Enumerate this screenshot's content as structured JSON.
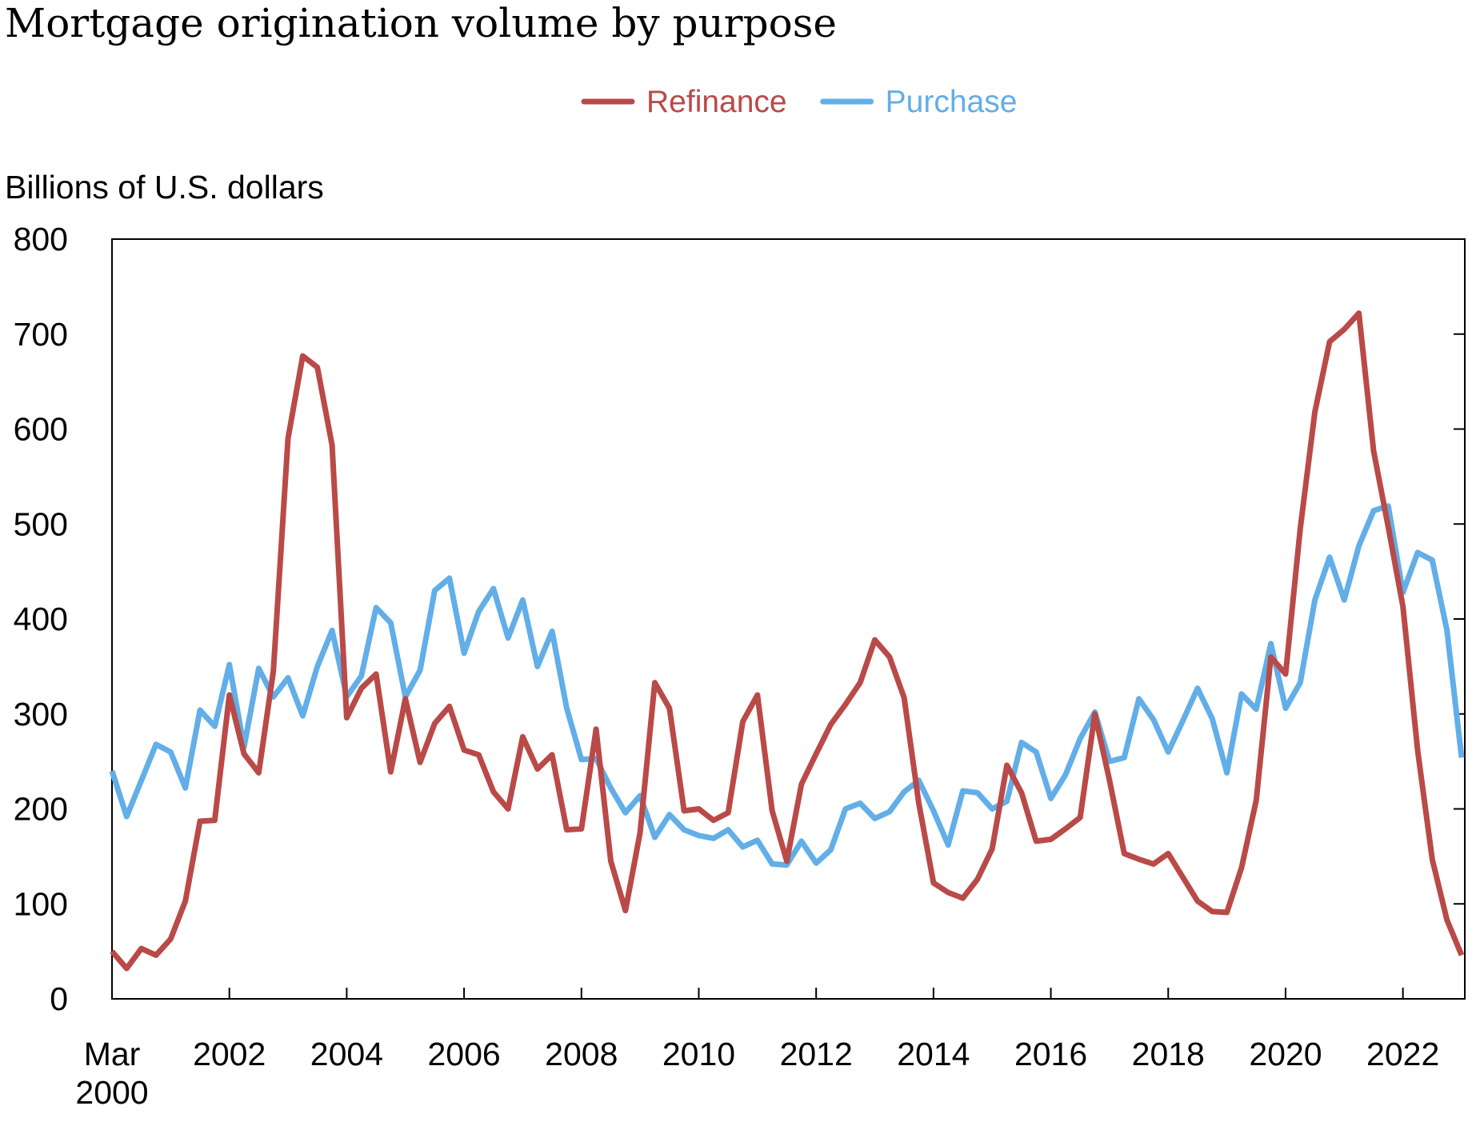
{
  "chart_data": {
    "type": "line",
    "title": "Mortgage origination volume by purpose",
    "ylabel": "Billions of U.S. dollars",
    "xlabel": "",
    "ylim": [
      0,
      800
    ],
    "yticks": [
      0,
      100,
      200,
      300,
      400,
      500,
      600,
      700,
      800
    ],
    "xtick_labels": [
      "Mar\n2000",
      "2002",
      "2004",
      "2006",
      "2008",
      "2010",
      "2012",
      "2014",
      "2016",
      "2018",
      "2020",
      "2022"
    ],
    "legend": "top-center",
    "grid": false,
    "x": [
      "2000Q1",
      "2000Q2",
      "2000Q3",
      "2000Q4",
      "2001Q1",
      "2001Q2",
      "2001Q3",
      "2001Q4",
      "2002Q1",
      "2002Q2",
      "2002Q3",
      "2002Q4",
      "2003Q1",
      "2003Q2",
      "2003Q3",
      "2003Q4",
      "2004Q1",
      "2004Q2",
      "2004Q3",
      "2004Q4",
      "2005Q1",
      "2005Q2",
      "2005Q3",
      "2005Q4",
      "2006Q1",
      "2006Q2",
      "2006Q3",
      "2006Q4",
      "2007Q1",
      "2007Q2",
      "2007Q3",
      "2007Q4",
      "2008Q1",
      "2008Q2",
      "2008Q3",
      "2008Q4",
      "2009Q1",
      "2009Q2",
      "2009Q3",
      "2009Q4",
      "2010Q1",
      "2010Q2",
      "2010Q3",
      "2010Q4",
      "2011Q1",
      "2011Q2",
      "2011Q3",
      "2011Q4",
      "2012Q1",
      "2012Q2",
      "2012Q3",
      "2012Q4",
      "2013Q1",
      "2013Q2",
      "2013Q3",
      "2013Q4",
      "2014Q1",
      "2014Q2",
      "2014Q3",
      "2014Q4",
      "2015Q1",
      "2015Q2",
      "2015Q3",
      "2015Q4",
      "2016Q1",
      "2016Q2",
      "2016Q3",
      "2016Q4",
      "2017Q1",
      "2017Q2",
      "2017Q3",
      "2017Q4",
      "2018Q1",
      "2018Q2",
      "2018Q3",
      "2018Q4",
      "2019Q1",
      "2019Q2",
      "2019Q3",
      "2019Q4",
      "2020Q1",
      "2020Q2",
      "2020Q3",
      "2020Q4",
      "2021Q1",
      "2021Q2",
      "2021Q3",
      "2021Q4",
      "2022Q1",
      "2022Q2",
      "2022Q3",
      "2022Q4",
      "2023Q1"
    ],
    "series": [
      {
        "name": "Refinance",
        "color": "#b94a48",
        "values": [
          50,
          32,
          53,
          46,
          63,
          103,
          187,
          188,
          320,
          258,
          238,
          345,
          590,
          677,
          665,
          583,
          296,
          327,
          342,
          239,
          316,
          249,
          290,
          308,
          262,
          257,
          218,
          200,
          276,
          242,
          257,
          178,
          179,
          284,
          145,
          93,
          175,
          333,
          306,
          198,
          200,
          188,
          196,
          292,
          320,
          198,
          145,
          226,
          258,
          289,
          310,
          333,
          378,
          360,
          317,
          206,
          122,
          112,
          106,
          126,
          158,
          246,
          217,
          166,
          168,
          179,
          191,
          300,
          230,
          153,
          147,
          142,
          153,
          128,
          103,
          92,
          91,
          138,
          209,
          360,
          342,
          495,
          618,
          692,
          705,
          722,
          577,
          497,
          413,
          262,
          147,
          83,
          46
        ]
      },
      {
        "name": "Purchase",
        "color": "#62aee8",
        "values": [
          240,
          192,
          230,
          268,
          260,
          222,
          304,
          287,
          352,
          265,
          348,
          318,
          338,
          298,
          350,
          388,
          318,
          340,
          412,
          396,
          318,
          346,
          430,
          443,
          364,
          408,
          432,
          380,
          420,
          350,
          387,
          306,
          252,
          253,
          222,
          196,
          214,
          170,
          194,
          178,
          172,
          169,
          178,
          160,
          167,
          142,
          141,
          166,
          143,
          157,
          200,
          206,
          190,
          197,
          218,
          230,
          198,
          162,
          219,
          217,
          200,
          208,
          270,
          260,
          211,
          236,
          274,
          302,
          250,
          254,
          316,
          294,
          260,
          293,
          327,
          295,
          238,
          321,
          305,
          374,
          306,
          333,
          420,
          465,
          420,
          477,
          514,
          519,
          428,
          470,
          462,
          388,
          254
        ]
      }
    ]
  }
}
